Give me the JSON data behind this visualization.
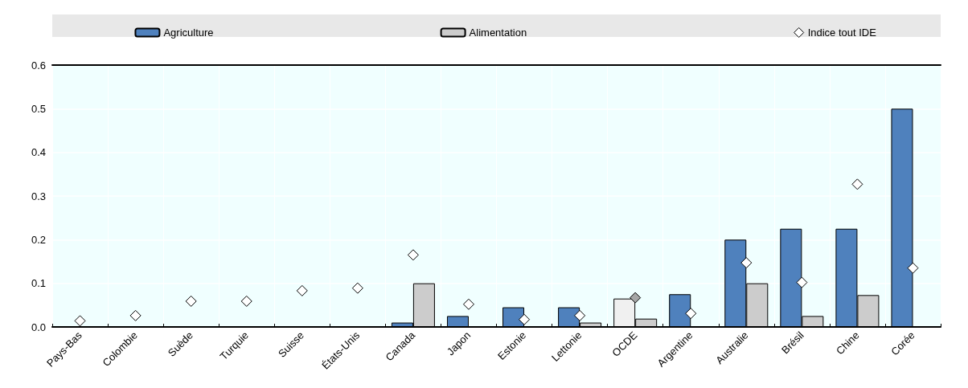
{
  "chart_data": {
    "type": "bar",
    "categories": [
      "Pays-Bas",
      "Colombie",
      "Suède",
      "Turquie",
      "Suisse",
      "États-Unis",
      "Canada",
      "Japon",
      "Estonie",
      "Lettonie",
      "OCDE",
      "Argentine",
      "Australie",
      "Brésil",
      "Chine",
      "Corée"
    ],
    "series": [
      {
        "name": "Agriculture",
        "color": "#4f81bd",
        "colors": [
          "#4f81bd",
          "#4f81bd",
          "#4f81bd",
          "#4f81bd",
          "#4f81bd",
          "#4f81bd",
          "#4f81bd",
          "#4f81bd",
          "#4f81bd",
          "#4f81bd",
          "#f0f0f0",
          "#4f81bd",
          "#4f81bd",
          "#4f81bd",
          "#4f81bd",
          "#4f81bd"
        ],
        "values": [
          0,
          0,
          0,
          0,
          0,
          0,
          0.01,
          0.025,
          0.045,
          0.045,
          0.065,
          0.075,
          0.2,
          0.225,
          0.225,
          0.5
        ]
      },
      {
        "name": "Alimentation",
        "color": "#cccccc",
        "values": [
          0,
          0,
          0,
          0,
          0,
          0,
          0.1,
          0,
          0,
          0.01,
          0.019,
          0,
          0.1,
          0.025,
          0.073,
          0
        ]
      },
      {
        "name": "Indice tout IDE",
        "type": "scatter",
        "marker": "diamond",
        "color": "#ffffff",
        "colors": [
          "#ffffff",
          "#ffffff",
          "#ffffff",
          "#ffffff",
          "#ffffff",
          "#ffffff",
          "#ffffff",
          "#ffffff",
          "#ffffff",
          "#ffffff",
          "#a6a6a6",
          "#ffffff",
          "#ffffff",
          "#ffffff",
          "#ffffff",
          "#ffffff"
        ],
        "x": [
          "Pays-Bas",
          "Colombie",
          "Suède",
          "Turquie",
          "Suisse",
          "États-Unis",
          "Canada",
          "Japon",
          "Estonie",
          "Lettonie",
          "OCDE",
          "Argentine",
          "Australie",
          "Brésil",
          "Chine",
          "Corée"
        ],
        "values": [
          0.014,
          0.026,
          0.059,
          0.059,
          0.083,
          0.089,
          0.165,
          0.052,
          0.017,
          0.026,
          0.067,
          0.031,
          0.147,
          0.102,
          0.327,
          0.135
        ]
      }
    ],
    "ylim": [
      0,
      0.6
    ],
    "yticks": [
      {
        "value": 0,
        "label": "0.0"
      },
      0.1,
      0.2,
      0.3,
      0.4,
      0.5,
      0.6
    ],
    "grid": true,
    "legend": "top"
  }
}
